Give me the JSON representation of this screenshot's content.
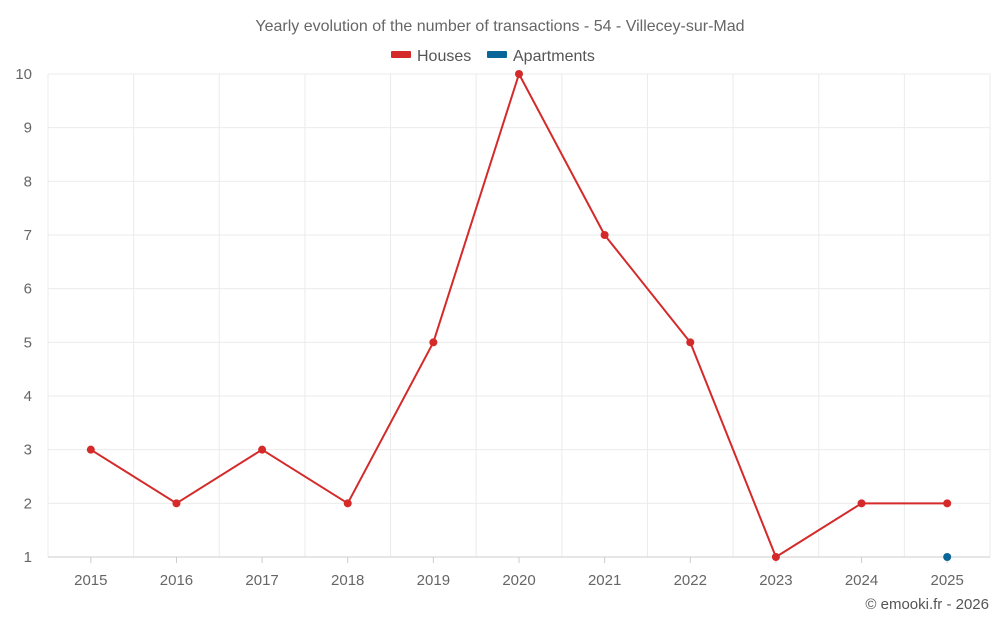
{
  "chart_data": {
    "type": "line",
    "title": "Yearly evolution of the number of transactions - 54 - Villecey-sur-Mad",
    "categories": [
      "2015",
      "2016",
      "2017",
      "2018",
      "2019",
      "2020",
      "2021",
      "2022",
      "2023",
      "2024",
      "2025"
    ],
    "y_ticks": [
      "1",
      "2",
      "3",
      "4",
      "5",
      "6",
      "7",
      "8",
      "9",
      "10"
    ],
    "ylim": [
      1,
      10
    ],
    "grid": true,
    "legend_position": "top-center",
    "series": [
      {
        "name": "Houses",
        "color": "#d42a2a",
        "values": [
          3,
          2,
          3,
          2,
          5,
          10,
          7,
          5,
          1,
          2,
          2
        ]
      },
      {
        "name": "Apartments",
        "color": "#0a6699",
        "values": [
          null,
          null,
          null,
          null,
          null,
          null,
          null,
          null,
          null,
          null,
          1
        ]
      }
    ]
  },
  "credit": "© emooki.fr - 2026",
  "colors": {
    "grid": "#ebebeb",
    "axis": "#cccccc"
  }
}
